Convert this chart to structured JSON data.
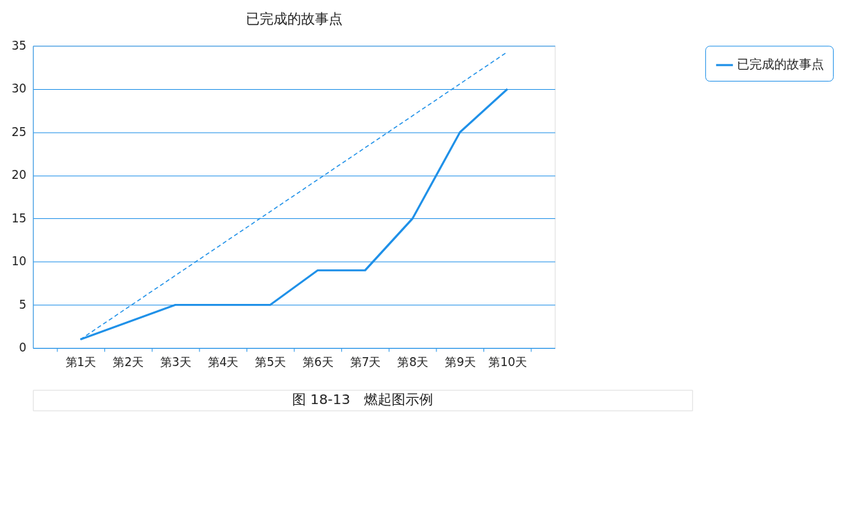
{
  "chart_data": {
    "type": "line",
    "title": "已完成的故事点",
    "categories": [
      "第1天",
      "第2天",
      "第3天",
      "第4天",
      "第5天",
      "第6天",
      "第7天",
      "第8天",
      "第9天",
      "第10天"
    ],
    "series": [
      {
        "name": "已完成的故事点",
        "color": "#1e90e8",
        "line_style": "solid",
        "values": [
          1,
          3,
          5,
          5,
          5,
          9,
          9,
          15,
          25,
          30
        ]
      },
      {
        "color": "#1e90e8",
        "line_style": "dashed",
        "values": [
          1,
          4.7,
          8.4,
          12.1,
          15.8,
          19.5,
          23.2,
          26.9,
          30.6,
          34.3
        ]
      }
    ],
    "ylim": [
      0,
      35
    ],
    "yticks": [
      0,
      5,
      10,
      15,
      20,
      25,
      30,
      35
    ],
    "grid": "y",
    "legend": "right",
    "marker": "none",
    "annotations": [
      "图 18-13　燃起图示例"
    ]
  }
}
